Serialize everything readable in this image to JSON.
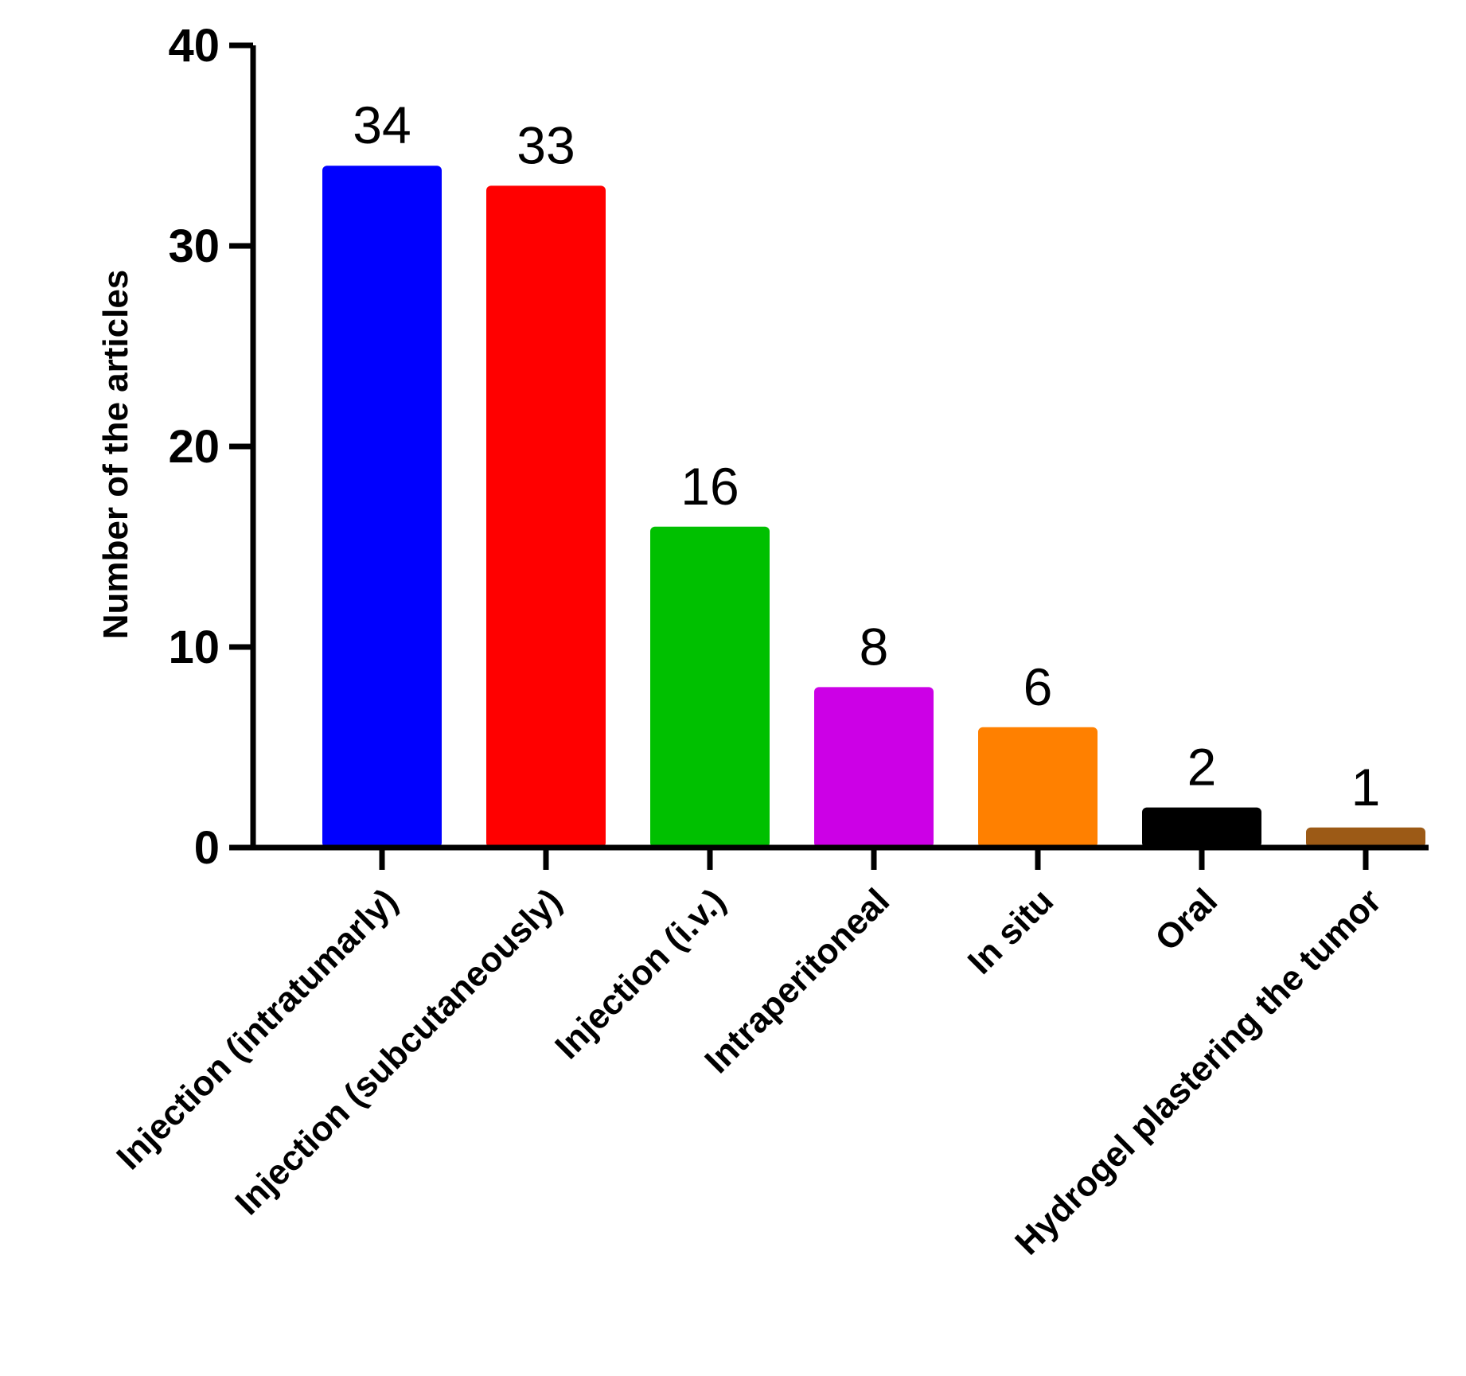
{
  "chart_data": {
    "type": "bar",
    "title": "",
    "xlabel": "",
    "ylabel": "Number of the articles",
    "ylim": [
      0,
      40
    ],
    "yticks": [
      0,
      10,
      20,
      30,
      40
    ],
    "ytick_labels": [
      "0",
      "10",
      "20",
      "30",
      "40"
    ],
    "grid": false,
    "legend": "none",
    "categories": [
      "Injection (intratumarly)",
      "Injection (subcutaneously)",
      "Injection (i.v.)",
      "Intraperitoneal",
      "In situ",
      "Oral",
      "Hydrogel plastering the tumor"
    ],
    "values": [
      34,
      33,
      16,
      8,
      6,
      2,
      1
    ],
    "data_labels": [
      "34",
      "33",
      "16",
      "8",
      "6",
      "2",
      "1"
    ],
    "colors": [
      "#0000ff",
      "#ff0000",
      "#00c000",
      "#cc00e6",
      "#ff8000",
      "#000000",
      "#9c5a16"
    ]
  }
}
